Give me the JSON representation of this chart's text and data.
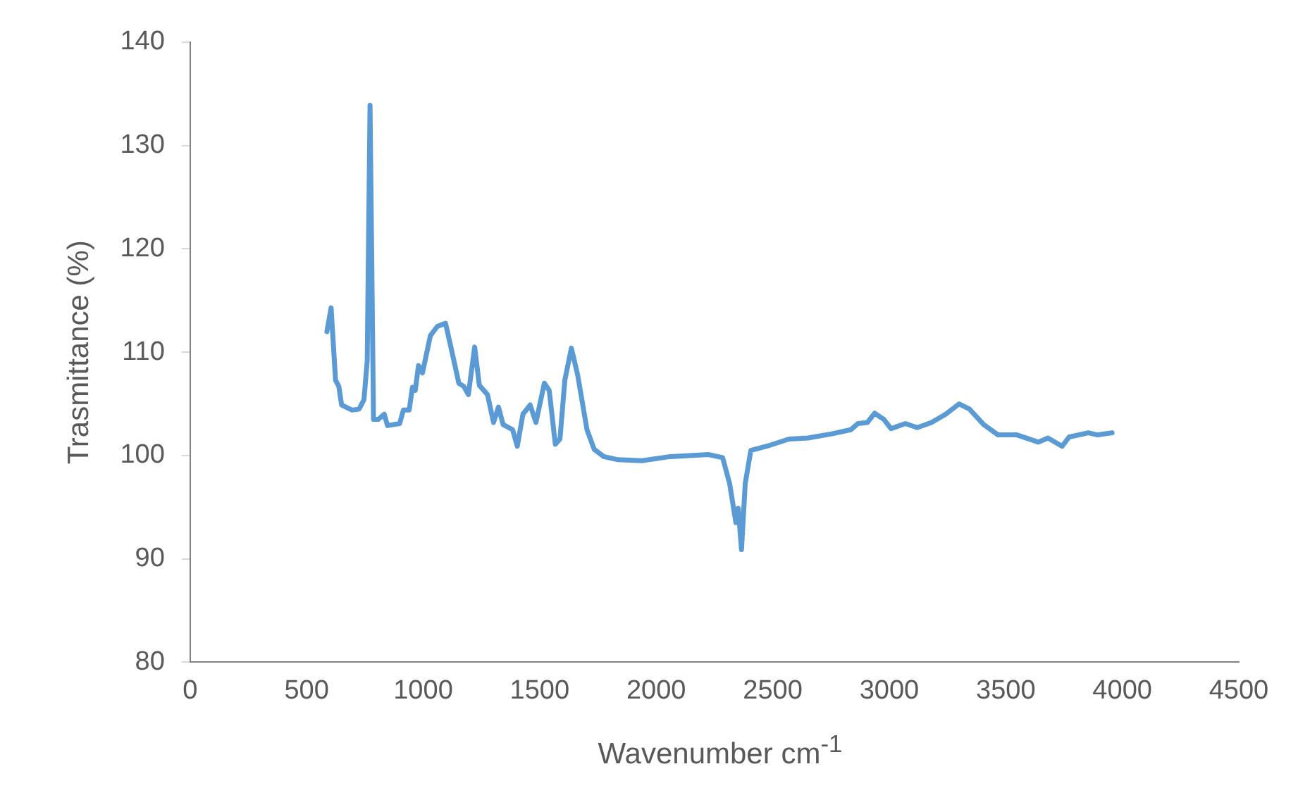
{
  "chart_data": {
    "type": "line",
    "xlabel": "Wavenumber cm$^{-1}$",
    "ylabel": "Trasmittance (%)",
    "color": "#5b9bd5",
    "marker": "none",
    "grid": false,
    "legend": false,
    "xlim": [
      0,
      4500
    ],
    "xticks": [
      0,
      500,
      1000,
      1500,
      2000,
      2500,
      3000,
      3500,
      4000,
      4500
    ],
    "ylim": [
      80,
      140
    ],
    "yticks": [
      80,
      90,
      100,
      110,
      120,
      130,
      140
    ],
    "x": [
      587,
      605,
      624,
      638,
      650,
      695,
      725,
      746,
      760,
      772,
      787,
      807,
      833,
      847,
      899,
      915,
      940,
      954,
      966,
      980,
      997,
      1031,
      1061,
      1096,
      1123,
      1153,
      1174,
      1194,
      1221,
      1241,
      1276,
      1302,
      1323,
      1343,
      1384,
      1404,
      1428,
      1459,
      1484,
      1520,
      1541,
      1567,
      1587,
      1608,
      1636,
      1663,
      1703,
      1734,
      1775,
      1836,
      1938,
      2060,
      2224,
      2285,
      2315,
      2342,
      2352,
      2366,
      2382,
      2406,
      2488,
      2570,
      2651,
      2753,
      2835,
      2866,
      2906,
      2937,
      2977,
      3008,
      3069,
      3120,
      3181,
      3242,
      3300,
      3344,
      3405,
      3467,
      3548,
      3640,
      3681,
      3742,
      3772,
      3854,
      3895,
      3956
    ],
    "values": [
      112.0,
      114.3,
      107.3,
      106.7,
      104.9,
      104.4,
      104.5,
      105.4,
      109.2,
      133.9,
      103.5,
      103.5,
      104.0,
      102.9,
      103.1,
      104.4,
      104.4,
      106.6,
      106.3,
      108.7,
      108.0,
      111.6,
      112.5,
      112.8,
      110.1,
      107.0,
      106.7,
      105.9,
      110.5,
      106.8,
      105.9,
      103.2,
      104.7,
      103.0,
      102.5,
      100.9,
      104.0,
      104.9,
      103.2,
      107.0,
      106.3,
      101.1,
      101.6,
      107.3,
      110.4,
      107.8,
      102.5,
      100.6,
      99.9,
      99.6,
      99.5,
      99.9,
      100.1,
      99.8,
      97.3,
      93.5,
      94.9,
      90.9,
      97.3,
      100.5,
      101.0,
      101.6,
      101.7,
      102.1,
      102.5,
      103.1,
      103.2,
      104.1,
      103.5,
      102.6,
      103.1,
      102.7,
      103.2,
      104.0,
      105.0,
      104.5,
      103.0,
      102.0,
      102.0,
      101.3,
      101.7,
      100.9,
      101.8,
      102.2,
      102.0,
      102.2
    ]
  }
}
